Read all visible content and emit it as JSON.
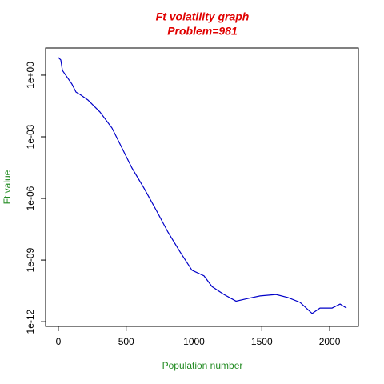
{
  "chart_data": {
    "type": "line",
    "title": "Ft volatility graph",
    "subtitle": "Problem=981",
    "x_label": "Population number",
    "y_label": "Ft value",
    "log_y": true,
    "x": [
      0,
      18,
      30,
      100,
      130,
      160,
      218,
      307,
      395,
      454,
      543,
      631,
      720,
      808,
      897,
      985,
      1074,
      1133,
      1221,
      1310,
      1398,
      1487,
      1605,
      1693,
      1782,
      1871,
      1929,
      2018,
      2077,
      2124
    ],
    "series": [
      {
        "name": "Ft value",
        "color": "#0000c8",
        "values": [
          7.2,
          5.5,
          1.7,
          0.37,
          0.15,
          0.115,
          0.062,
          0.016,
          0.0027,
          0.00045,
          3e-05,
          3.2e-06,
          2.8e-07,
          2.3e-08,
          2.5e-09,
          3.2e-10,
          1.7e-10,
          5.1e-11,
          2.1e-11,
          1e-11,
          1.35e-11,
          1.8e-11,
          2.1e-11,
          1.5e-11,
          8.7e-12,
          2.5e-12,
          4.6e-12,
          4.6e-12,
          7.2e-12,
          4.6e-12
        ]
      }
    ],
    "xlim": [
      -94,
      2212
    ],
    "xticks": [
      0,
      500,
      1000,
      1500,
      2000
    ],
    "ylim": [
      5.9e-13,
      21
    ],
    "yticks": [
      {
        "value": 1,
        "label": "1e+00"
      },
      {
        "value": 0.001,
        "label": "1e-03"
      },
      {
        "value": 1e-06,
        "label": "1e-06"
      },
      {
        "value": 1e-09,
        "label": "1e-09"
      },
      {
        "value": 1e-12,
        "label": "1e-12"
      }
    ]
  }
}
